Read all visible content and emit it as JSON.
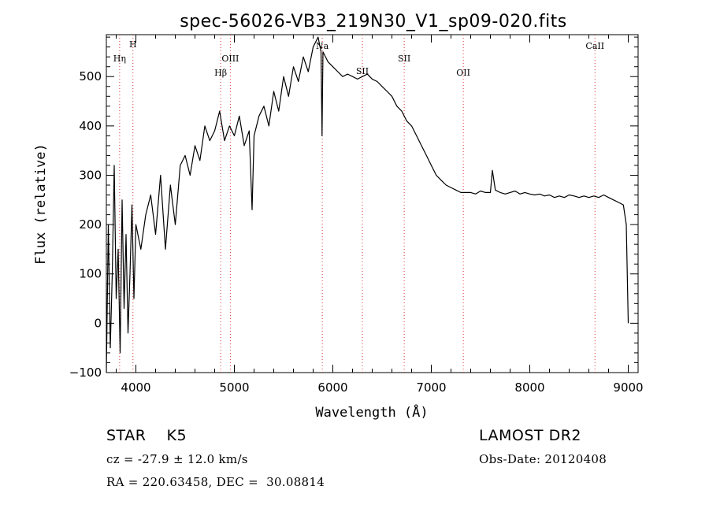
{
  "chart_data": {
    "type": "line",
    "title": "spec-56026-VB3_219N30_V1_sp09-020.fits",
    "xlabel": "Wavelength (Å)",
    "ylabel": "Flux (relative)",
    "xlim": [
      3700,
      9100
    ],
    "ylim": [
      -100,
      585
    ],
    "xticks": [
      4000,
      5000,
      6000,
      7000,
      8000,
      9000
    ],
    "yticks": [
      -100,
      0,
      100,
      200,
      300,
      400,
      500
    ],
    "grid": false,
    "line_color": "#000000",
    "marker_color": "#e03030",
    "lines": [
      {
        "label": "Hη",
        "x": 3835
      },
      {
        "label": "H",
        "x": 3970
      },
      {
        "label": "Hβ",
        "x": 4861
      },
      {
        "label": "OIII",
        "x": 4959
      },
      {
        "label": "Na",
        "x": 5893
      },
      {
        "label": "SII",
        "x": 6300
      },
      {
        "label": "SII",
        "x": 6725
      },
      {
        "label": "OII",
        "x": 7325
      },
      {
        "label": "CaII",
        "x": 8662
      }
    ],
    "series": [
      {
        "x": [
          3700,
          3720,
          3740,
          3760,
          3780,
          3800,
          3820,
          3840,
          3860,
          3880,
          3900,
          3920,
          3940,
          3960,
          3980,
          4000,
          4050,
          4100,
          4150,
          4200,
          4250,
          4300,
          4350,
          4400,
          4450,
          4500,
          4550,
          4600,
          4650,
          4700,
          4750,
          4800,
          4850,
          4900,
          4950,
          5000,
          5050,
          5100,
          5150,
          5180,
          5200,
          5250,
          5300,
          5350,
          5400,
          5450,
          5500,
          5550,
          5600,
          5650,
          5700,
          5750,
          5800,
          5850,
          5880,
          5890,
          5895,
          5900,
          5950,
          6000,
          6050,
          6100,
          6150,
          6200,
          6250,
          6300,
          6350,
          6400,
          6450,
          6500,
          6550,
          6600,
          6650,
          6700,
          6750,
          6800,
          6850,
          6900,
          6950,
          7000,
          7050,
          7100,
          7150,
          7200,
          7250,
          7300,
          7350,
          7400,
          7450,
          7500,
          7550,
          7600,
          7620,
          7650,
          7700,
          7750,
          7800,
          7850,
          7900,
          7950,
          8000,
          8050,
          8100,
          8150,
          8200,
          8250,
          8300,
          8350,
          8400,
          8450,
          8500,
          8550,
          8600,
          8650,
          8700,
          8750,
          8800,
          8850,
          8900,
          8950,
          8980,
          9000
        ],
        "y": [
          -100,
          200,
          -50,
          100,
          320,
          50,
          150,
          -60,
          250,
          30,
          180,
          -20,
          100,
          240,
          50,
          200,
          150,
          220,
          260,
          180,
          300,
          150,
          280,
          200,
          320,
          340,
          300,
          360,
          330,
          400,
          370,
          390,
          430,
          370,
          400,
          380,
          420,
          360,
          390,
          230,
          380,
          420,
          440,
          400,
          470,
          430,
          500,
          460,
          520,
          490,
          540,
          510,
          560,
          580,
          550,
          380,
          470,
          550,
          530,
          520,
          510,
          500,
          505,
          500,
          495,
          500,
          505,
          495,
          490,
          480,
          470,
          460,
          440,
          430,
          410,
          400,
          380,
          360,
          340,
          320,
          300,
          290,
          280,
          275,
          270,
          265,
          265,
          265,
          262,
          268,
          265,
          265,
          310,
          270,
          265,
          262,
          265,
          268,
          262,
          265,
          262,
          260,
          262,
          258,
          260,
          255,
          258,
          255,
          260,
          258,
          255,
          258,
          255,
          258,
          255,
          260,
          255,
          250,
          245,
          240,
          200,
          0
        ]
      }
    ]
  },
  "info": {
    "star_label": "STAR    K5",
    "survey_label": "LAMOST DR2",
    "cz_line": "cz = -27.9 ± 12.0 km/s",
    "obs_date_line": "Obs-Date: 20120408",
    "coord_line": "RA = 220.63458, DEC =  30.08814"
  }
}
